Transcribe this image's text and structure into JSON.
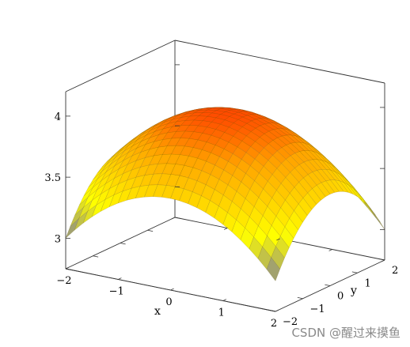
{
  "chart_data": {
    "type": "surface",
    "function": "4 - (x^2 + y^2)/8 (approx. shape of the depicted paraboloid)",
    "x_range": [
      -2,
      2
    ],
    "y_range": [
      -2,
      2
    ],
    "z_range": [
      2.75,
      4.2
    ],
    "grid_samples": 25,
    "colormap": [
      "#4040e0",
      "#ffff00",
      "#ffa500",
      "#ff0000"
    ],
    "x_ticks": [
      {
        "value": -2,
        "label": "−2"
      },
      {
        "value": -1,
        "label": "−1"
      },
      {
        "value": 0,
        "label": "0"
      },
      {
        "value": 1,
        "label": "1"
      },
      {
        "value": 2,
        "label": "2"
      }
    ],
    "y_ticks": [
      {
        "value": -2,
        "label": "−2"
      },
      {
        "value": -1,
        "label": "−1"
      },
      {
        "value": 0,
        "label": "0"
      },
      {
        "value": 1,
        "label": "1"
      },
      {
        "value": 2,
        "label": "2"
      }
    ],
    "z_ticks": [
      {
        "value": 3,
        "label": "3"
      },
      {
        "value": 3.5,
        "label": "3.5"
      },
      {
        "value": 4,
        "label": "4"
      }
    ],
    "xlabel": "x",
    "ylabel": "y",
    "zlabel": "",
    "box": true,
    "grid": false
  },
  "watermark": "CSDN @醒过来摸鱼"
}
